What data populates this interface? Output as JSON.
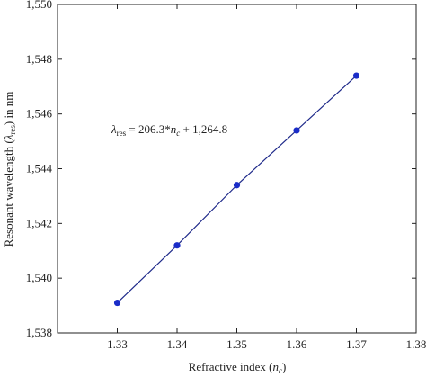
{
  "chart_data": {
    "type": "line",
    "x": [
      1.33,
      1.34,
      1.35,
      1.36,
      1.37
    ],
    "series": [
      {
        "color": "#1a2cc8",
        "values": [
          1539.1,
          1541.2,
          1543.4,
          1545.4,
          1547.4
        ]
      }
    ],
    "xlim": [
      1.32,
      1.38
    ],
    "xticks": [
      1.33,
      1.34,
      1.35,
      1.36,
      1.37,
      1.38
    ],
    "ylim": [
      1538,
      1550
    ],
    "yticks": [
      {
        "value": 1538,
        "label": "1,538"
      },
      {
        "value": 1540,
        "label": "1,540"
      },
      {
        "value": 1542,
        "label": "1,542"
      },
      {
        "value": 1544,
        "label": "1,544"
      },
      {
        "value": 1546,
        "label": "1,546"
      },
      {
        "value": 1548,
        "label": "1,548"
      },
      {
        "value": 1550,
        "label": "1,550"
      }
    ],
    "xlabel": [
      "Refractive index (",
      "n",
      "c",
      ")"
    ],
    "ylabel": [
      "Resonant wavelength (",
      "λ",
      "res",
      ") in nm"
    ],
    "annotation": [
      "λ",
      "res",
      " = 206.3*",
      "n",
      "c",
      " + 1,264.8"
    ],
    "grid": false
  }
}
